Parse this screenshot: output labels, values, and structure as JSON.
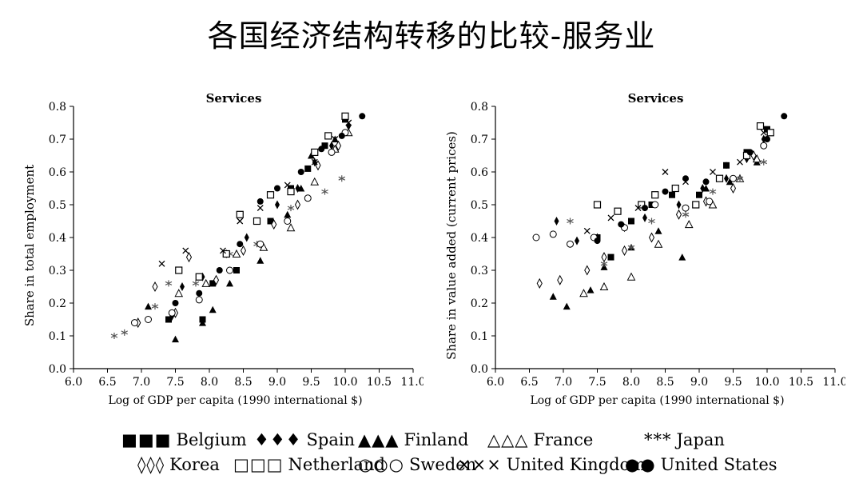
{
  "title": "各国经济结构转移的比较-服务业",
  "chart_data": [
    {
      "type": "scatter",
      "title": "Services",
      "xlabel": "Log of GDP per capita (1990 international $)",
      "ylabel": "Share in total employment",
      "xlim": [
        6.0,
        11.0
      ],
      "ylim": [
        0.0,
        0.8
      ],
      "xticks": [
        "6.0",
        "6.5",
        "7.0",
        "7.5",
        "8.0",
        "8.5",
        "9.0",
        "9.5",
        "10.0",
        "10.5",
        "11.0"
      ],
      "yticks": [
        "0.0",
        "0.1",
        "0.2",
        "0.3",
        "0.4",
        "0.5",
        "0.6",
        "0.7",
        "0.8"
      ],
      "grid": false,
      "series": [
        {
          "name": "Belgium",
          "points": [
            [
              7.4,
              0.15
            ],
            [
              7.9,
              0.15
            ],
            [
              8.05,
              0.26
            ],
            [
              8.4,
              0.3
            ],
            [
              8.9,
              0.45
            ],
            [
              9.2,
              0.55
            ],
            [
              9.45,
              0.61
            ],
            [
              9.7,
              0.68
            ],
            [
              10.0,
              0.76
            ]
          ]
        },
        {
          "name": "Spain",
          "points": [
            [
              7.45,
              0.16
            ],
            [
              7.6,
              0.25
            ],
            [
              7.9,
              0.28
            ],
            [
              8.25,
              0.35
            ],
            [
              8.55,
              0.4
            ],
            [
              9.0,
              0.5
            ],
            [
              9.3,
              0.55
            ],
            [
              9.55,
              0.63
            ],
            [
              9.8,
              0.68
            ],
            [
              10.05,
              0.74
            ]
          ]
        },
        {
          "name": "Finland",
          "points": [
            [
              7.1,
              0.19
            ],
            [
              7.5,
              0.09
            ],
            [
              7.9,
              0.14
            ],
            [
              8.05,
              0.18
            ],
            [
              8.3,
              0.26
            ],
            [
              8.75,
              0.33
            ],
            [
              9.15,
              0.47
            ],
            [
              9.35,
              0.55
            ],
            [
              9.5,
              0.65
            ],
            [
              9.85,
              0.7
            ]
          ]
        },
        {
          "name": "France",
          "points": [
            [
              7.55,
              0.23
            ],
            [
              7.95,
              0.26
            ],
            [
              8.4,
              0.35
            ],
            [
              8.8,
              0.37
            ],
            [
              9.2,
              0.43
            ],
            [
              9.55,
              0.57
            ],
            [
              9.85,
              0.67
            ],
            [
              10.05,
              0.72
            ]
          ]
        },
        {
          "name": "Japan",
          "points": [
            [
              6.6,
              0.1
            ],
            [
              6.75,
              0.11
            ],
            [
              7.2,
              0.19
            ],
            [
              7.4,
              0.26
            ],
            [
              7.8,
              0.26
            ],
            [
              8.3,
              0.35
            ],
            [
              8.7,
              0.38
            ],
            [
              9.2,
              0.49
            ],
            [
              9.7,
              0.54
            ],
            [
              9.95,
              0.58
            ]
          ]
        },
        {
          "name": "Korea",
          "points": [
            [
              6.95,
              0.14
            ],
            [
              7.2,
              0.25
            ],
            [
              7.5,
              0.17
            ],
            [
              7.7,
              0.34
            ],
            [
              8.1,
              0.27
            ],
            [
              8.5,
              0.36
            ],
            [
              8.95,
              0.44
            ],
            [
              9.3,
              0.5
            ],
            [
              9.6,
              0.62
            ],
            [
              9.9,
              0.68
            ]
          ]
        },
        {
          "name": "Netherland",
          "points": [
            [
              7.55,
              0.3
            ],
            [
              7.85,
              0.28
            ],
            [
              8.25,
              0.35
            ],
            [
              8.45,
              0.47
            ],
            [
              8.7,
              0.45
            ],
            [
              8.9,
              0.53
            ],
            [
              9.2,
              0.54
            ],
            [
              9.55,
              0.66
            ],
            [
              9.75,
              0.71
            ],
            [
              10.0,
              0.77
            ]
          ]
        },
        {
          "name": "Sweden",
          "points": [
            [
              6.9,
              0.14
            ],
            [
              7.1,
              0.15
            ],
            [
              7.45,
              0.17
            ],
            [
              7.85,
              0.21
            ],
            [
              8.3,
              0.3
            ],
            [
              8.75,
              0.38
            ],
            [
              9.15,
              0.45
            ],
            [
              9.45,
              0.52
            ],
            [
              9.8,
              0.66
            ],
            [
              10.0,
              0.72
            ]
          ]
        },
        {
          "name": "United Kingdom",
          "points": [
            [
              7.3,
              0.32
            ],
            [
              7.65,
              0.36
            ],
            [
              8.2,
              0.36
            ],
            [
              8.45,
              0.45
            ],
            [
              8.75,
              0.49
            ],
            [
              9.15,
              0.56
            ],
            [
              9.55,
              0.63
            ],
            [
              9.85,
              0.7
            ],
            [
              10.05,
              0.75
            ]
          ]
        },
        {
          "name": "United States",
          "points": [
            [
              7.5,
              0.2
            ],
            [
              7.85,
              0.23
            ],
            [
              8.15,
              0.3
            ],
            [
              8.45,
              0.38
            ],
            [
              8.75,
              0.51
            ],
            [
              9.0,
              0.55
            ],
            [
              9.35,
              0.6
            ],
            [
              9.65,
              0.67
            ],
            [
              9.95,
              0.71
            ],
            [
              10.25,
              0.77
            ]
          ]
        }
      ]
    },
    {
      "type": "scatter",
      "title": "Services",
      "xlabel": "Log of GDP per capita (1990 international $)",
      "ylabel": "Share in value added (current prices)",
      "xlim": [
        6.0,
        11.0
      ],
      "ylim": [
        0.0,
        0.8
      ],
      "xticks": [
        "6.0",
        "6.5",
        "7.0",
        "7.5",
        "8.0",
        "8.5",
        "9.0",
        "9.5",
        "10.0",
        "10.5",
        "11.0"
      ],
      "yticks": [
        "0.0",
        "0.1",
        "0.2",
        "0.3",
        "0.4",
        "0.5",
        "0.6",
        "0.7",
        "0.8"
      ],
      "grid": false,
      "series": [
        {
          "name": "Belgium",
          "points": [
            [
              7.5,
              0.4
            ],
            [
              7.7,
              0.34
            ],
            [
              8.0,
              0.45
            ],
            [
              8.3,
              0.5
            ],
            [
              8.6,
              0.53
            ],
            [
              9.0,
              0.53
            ],
            [
              9.4,
              0.62
            ],
            [
              9.7,
              0.66
            ],
            [
              10.0,
              0.73
            ]
          ]
        },
        {
          "name": "Spain",
          "points": [
            [
              6.9,
              0.45
            ],
            [
              7.2,
              0.39
            ],
            [
              7.5,
              0.4
            ],
            [
              7.9,
              0.43
            ],
            [
              8.2,
              0.46
            ],
            [
              8.7,
              0.5
            ],
            [
              9.05,
              0.55
            ],
            [
              9.4,
              0.58
            ],
            [
              9.7,
              0.64
            ],
            [
              9.95,
              0.7
            ]
          ]
        },
        {
          "name": "Finland",
          "points": [
            [
              6.85,
              0.22
            ],
            [
              7.05,
              0.19
            ],
            [
              7.4,
              0.24
            ],
            [
              7.6,
              0.31
            ],
            [
              8.0,
              0.37
            ],
            [
              8.4,
              0.42
            ],
            [
              8.75,
              0.34
            ],
            [
              9.1,
              0.55
            ],
            [
              9.45,
              0.57
            ],
            [
              9.85,
              0.63
            ]
          ]
        },
        {
          "name": "France",
          "points": [
            [
              7.3,
              0.23
            ],
            [
              7.6,
              0.25
            ],
            [
              8.0,
              0.28
            ],
            [
              8.4,
              0.38
            ],
            [
              8.85,
              0.44
            ],
            [
              9.2,
              0.5
            ],
            [
              9.6,
              0.58
            ],
            [
              9.85,
              0.64
            ]
          ]
        },
        {
          "name": "Japan",
          "points": [
            [
              7.1,
              0.45
            ],
            [
              7.6,
              0.32
            ],
            [
              8.0,
              0.37
            ],
            [
              8.3,
              0.45
            ],
            [
              8.8,
              0.47
            ],
            [
              9.2,
              0.54
            ],
            [
              9.6,
              0.58
            ],
            [
              9.95,
              0.63
            ]
          ]
        },
        {
          "name": "Korea",
          "points": [
            [
              6.65,
              0.26
            ],
            [
              6.95,
              0.27
            ],
            [
              7.35,
              0.3
            ],
            [
              7.6,
              0.34
            ],
            [
              7.9,
              0.36
            ],
            [
              8.3,
              0.4
            ],
            [
              8.7,
              0.47
            ],
            [
              9.1,
              0.51
            ],
            [
              9.5,
              0.55
            ],
            [
              9.8,
              0.65
            ]
          ]
        },
        {
          "name": "Netherland",
          "points": [
            [
              7.5,
              0.5
            ],
            [
              7.8,
              0.48
            ],
            [
              8.15,
              0.5
            ],
            [
              8.35,
              0.53
            ],
            [
              8.65,
              0.55
            ],
            [
              8.95,
              0.5
            ],
            [
              9.3,
              0.58
            ],
            [
              9.7,
              0.65
            ],
            [
              9.9,
              0.74
            ],
            [
              10.05,
              0.72
            ]
          ]
        },
        {
          "name": "Sweden",
          "points": [
            [
              6.6,
              0.4
            ],
            [
              6.85,
              0.41
            ],
            [
              7.1,
              0.38
            ],
            [
              7.45,
              0.4
            ],
            [
              7.9,
              0.43
            ],
            [
              8.35,
              0.5
            ],
            [
              8.8,
              0.49
            ],
            [
              9.15,
              0.51
            ],
            [
              9.5,
              0.58
            ],
            [
              9.95,
              0.68
            ]
          ]
        },
        {
          "name": "United Kingdom",
          "points": [
            [
              7.35,
              0.42
            ],
            [
              7.7,
              0.46
            ],
            [
              8.1,
              0.49
            ],
            [
              8.5,
              0.6
            ],
            [
              8.8,
              0.57
            ],
            [
              9.2,
              0.6
            ],
            [
              9.6,
              0.63
            ],
            [
              9.95,
              0.72
            ]
          ]
        },
        {
          "name": "United States",
          "points": [
            [
              7.5,
              0.39
            ],
            [
              7.85,
              0.44
            ],
            [
              8.2,
              0.49
            ],
            [
              8.5,
              0.54
            ],
            [
              8.8,
              0.58
            ],
            [
              9.1,
              0.57
            ],
            [
              9.4,
              0.62
            ],
            [
              9.75,
              0.66
            ],
            [
              10.0,
              0.7
            ],
            [
              10.25,
              0.77
            ]
          ]
        }
      ]
    }
  ],
  "legend": {
    "row1": [
      {
        "series": "Belgium",
        "symbol": "■■■",
        "label": "Belgium"
      },
      {
        "series": "Spain",
        "symbol": "♦♦♦",
        "label": "Spain"
      },
      {
        "series": "Finland",
        "symbol": "▲▲▲",
        "label": "Finland"
      },
      {
        "series": "France",
        "symbol": "△△△",
        "label": "France"
      },
      {
        "series": "Japan",
        "symbol": "***",
        "label": "Japan"
      }
    ],
    "row2": [
      {
        "series": "Korea",
        "symbol": "◊◊◊",
        "label": "Korea"
      },
      {
        "series": "Netherland",
        "symbol": "□□□",
        "label": "Netherland"
      },
      {
        "series": "Sweden",
        "symbol": "○○○",
        "label": "Sweden"
      },
      {
        "series": "United Kingdom",
        "symbol": "×××",
        "label": "United Kingdom"
      },
      {
        "series": "United States",
        "symbol": "●●",
        "label": "United States"
      }
    ]
  },
  "markers": {
    "Belgium": "square-filled",
    "Spain": "diamond-filled",
    "Finland": "triangle-filled",
    "France": "triangle-open",
    "Japan": "asterisk",
    "Korea": "diamond-open",
    "Netherland": "square-open",
    "Sweden": "circle-open",
    "United Kingdom": "cross",
    "United States": "circle-filled"
  }
}
